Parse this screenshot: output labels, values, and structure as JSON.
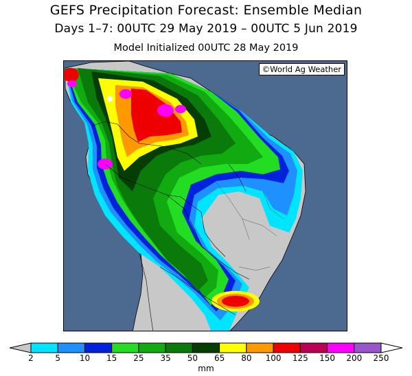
{
  "title": {
    "line1": "GEFS Precipitation Forecast: Ensemble Median",
    "line2": "Days 1–7: 00UTC 29 May 2019 – 00UTC 5 Jun 2019",
    "line3": "Model Initialized 00UTC 28 May 2019"
  },
  "credit": "©World Ag Weather",
  "legend": {
    "units": "mm",
    "ticks": [
      "2",
      "5",
      "10",
      "15",
      "25",
      "35",
      "50",
      "65",
      "80",
      "100",
      "125",
      "150",
      "200",
      "250"
    ],
    "colors": [
      "#c8c8c8",
      "#00e5ff",
      "#1e90ff",
      "#0022dd",
      "#22dd22",
      "#11aa11",
      "#0a7a0a",
      "#053d05",
      "#ffff00",
      "#ff9900",
      "#ee0000",
      "#bb0055",
      "#ff00ff",
      "#9955cc",
      "#ffffff"
    ]
  },
  "map": {
    "ocean_color": "#4c6a8f",
    "dry_color": "#c8c8c8",
    "region": "South America"
  }
}
